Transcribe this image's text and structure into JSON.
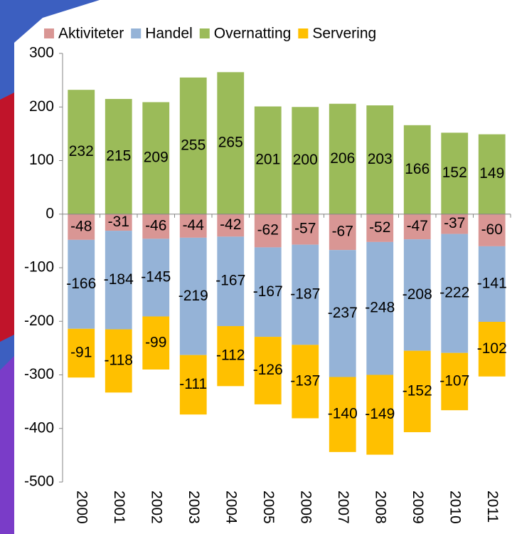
{
  "chart_data": {
    "type": "stacked-bar",
    "categories": [
      "2000",
      "2001",
      "2002",
      "2003",
      "2004",
      "2005",
      "2006",
      "2007",
      "2008",
      "2009",
      "2010",
      "2011"
    ],
    "series": [
      {
        "name": "Aktiviteter",
        "color": "#d99694",
        "values": [
          -48,
          -31,
          -46,
          -44,
          -42,
          -62,
          -57,
          -67,
          -52,
          -47,
          -37,
          -60
        ]
      },
      {
        "name": "Handel",
        "color": "#95b3d7",
        "values": [
          -166,
          -184,
          -145,
          -219,
          -167,
          -167,
          -187,
          -237,
          -248,
          -208,
          -222,
          -141
        ]
      },
      {
        "name": "Overnatting",
        "color": "#9bbb59",
        "values": [
          232,
          215,
          209,
          255,
          265,
          201,
          200,
          206,
          203,
          166,
          152,
          149
        ]
      },
      {
        "name": "Servering",
        "color": "#ffc000",
        "values": [
          -91,
          -118,
          -99,
          -111,
          -112,
          -126,
          -137,
          -140,
          -149,
          -152,
          -107,
          -102
        ]
      }
    ],
    "ylim": [
      -500,
      300
    ],
    "yticks": [
      -500,
      -400,
      -300,
      -200,
      -100,
      0,
      100,
      200,
      300
    ],
    "legend": "top",
    "grid": false
  }
}
